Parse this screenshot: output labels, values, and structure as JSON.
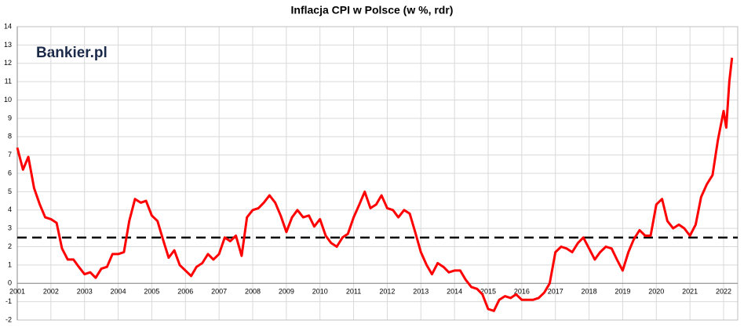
{
  "chart_data": {
    "type": "line",
    "title": "Inflacja CPI w Polsce (w %, rdr)",
    "logo": "Bankier.pl",
    "color": "#ff0000",
    "reference_line": 2.5,
    "grid": true,
    "xlim": [
      2001,
      2022.42
    ],
    "xticks": [
      2001,
      2002,
      2003,
      2004,
      2005,
      2006,
      2007,
      2008,
      2009,
      2010,
      2011,
      2012,
      2013,
      2014,
      2015,
      2016,
      2017,
      2018,
      2019,
      2020,
      2021,
      2022
    ],
    "ylim": [
      -2,
      14
    ],
    "yticks": [
      -2,
      -1,
      0,
      1,
      2,
      3,
      4,
      5,
      6,
      7,
      8,
      9,
      10,
      11,
      12,
      13,
      14
    ],
    "x": [
      2001,
      2001.17,
      2001.33,
      2001.5,
      2001.67,
      2001.83,
      2002,
      2002.17,
      2002.33,
      2002.5,
      2002.67,
      2002.83,
      2003,
      2003.17,
      2003.33,
      2003.5,
      2003.67,
      2003.83,
      2004,
      2004.17,
      2004.33,
      2004.5,
      2004.67,
      2004.83,
      2005,
      2005.17,
      2005.33,
      2005.5,
      2005.67,
      2005.83,
      2006,
      2006.17,
      2006.33,
      2006.5,
      2006.67,
      2006.83,
      2007,
      2007.17,
      2007.33,
      2007.5,
      2007.67,
      2007.83,
      2008,
      2008.17,
      2008.33,
      2008.5,
      2008.67,
      2008.83,
      2009,
      2009.17,
      2009.33,
      2009.5,
      2009.67,
      2009.83,
      2010,
      2010.17,
      2010.33,
      2010.5,
      2010.67,
      2010.83,
      2011,
      2011.17,
      2011.33,
      2011.5,
      2011.67,
      2011.83,
      2012,
      2012.17,
      2012.33,
      2012.5,
      2012.67,
      2012.83,
      2013,
      2013.17,
      2013.33,
      2013.5,
      2013.67,
      2013.83,
      2014,
      2014.17,
      2014.33,
      2014.5,
      2014.67,
      2014.83,
      2015,
      2015.17,
      2015.33,
      2015.5,
      2015.67,
      2015.83,
      2016,
      2016.17,
      2016.33,
      2016.5,
      2016.67,
      2016.83,
      2017,
      2017.17,
      2017.33,
      2017.5,
      2017.67,
      2017.83,
      2018,
      2018.17,
      2018.33,
      2018.5,
      2018.67,
      2018.83,
      2019,
      2019.17,
      2019.33,
      2019.5,
      2019.67,
      2019.83,
      2020,
      2020.17,
      2020.33,
      2020.5,
      2020.67,
      2020.83,
      2021,
      2021.17,
      2021.33,
      2021.5,
      2021.67,
      2021.83,
      2022,
      2022.08,
      2022.17,
      2022.25
    ],
    "values": [
      7.4,
      6.2,
      6.9,
      5.2,
      4.3,
      3.6,
      3.5,
      3.3,
      1.9,
      1.3,
      1.3,
      0.9,
      0.5,
      0.6,
      0.3,
      0.8,
      0.9,
      1.6,
      1.6,
      1.7,
      3.4,
      4.6,
      4.4,
      4.5,
      3.7,
      3.4,
      2.4,
      1.4,
      1.8,
      1.0,
      0.7,
      0.4,
      0.9,
      1.1,
      1.6,
      1.3,
      1.6,
      2.5,
      2.3,
      2.6,
      1.5,
      3.6,
      4.0,
      4.1,
      4.4,
      4.8,
      4.4,
      3.7,
      2.8,
      3.6,
      4.0,
      3.6,
      3.7,
      3.1,
      3.5,
      2.6,
      2.2,
      2.0,
      2.5,
      2.7,
      3.6,
      4.3,
      5.0,
      4.1,
      4.3,
      4.8,
      4.1,
      4.0,
      3.6,
      4.0,
      3.8,
      2.8,
      1.7,
      1.0,
      0.5,
      1.1,
      0.9,
      0.6,
      0.7,
      0.7,
      0.2,
      -0.2,
      -0.3,
      -0.6,
      -1.4,
      -1.5,
      -0.9,
      -0.7,
      -0.8,
      -0.6,
      -0.9,
      -0.9,
      -0.9,
      -0.8,
      -0.5,
      0.0,
      1.7,
      2.0,
      1.9,
      1.7,
      2.2,
      2.5,
      1.9,
      1.3,
      1.7,
      2.0,
      1.9,
      1.3,
      0.7,
      1.7,
      2.4,
      2.9,
      2.6,
      2.6,
      4.3,
      4.6,
      3.4,
      3.0,
      3.2,
      3.0,
      2.6,
      3.2,
      4.7,
      5.4,
      5.9,
      7.8,
      9.4,
      8.5,
      11.0,
      12.3
    ]
  }
}
